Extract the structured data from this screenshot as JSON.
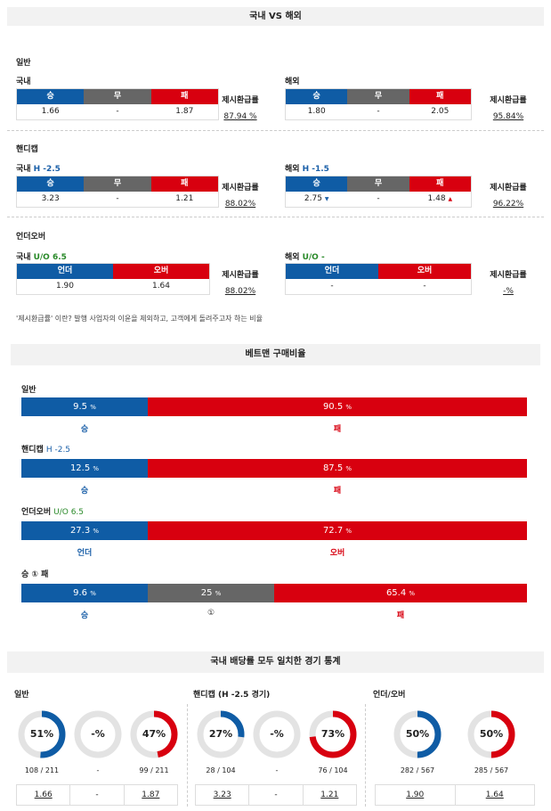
{
  "sec1": {
    "title": "국내 VS 해외",
    "rate_label": "제시환급률",
    "general": {
      "label": "일반",
      "dom": {
        "label": "국내",
        "h": [
          "승",
          "무",
          "패"
        ],
        "v": [
          "1.66",
          "-",
          "1.87"
        ],
        "rate": "87.94 %"
      },
      "ovs": {
        "label": "해외",
        "h": [
          "승",
          "무",
          "패"
        ],
        "v": [
          "1.80",
          "-",
          "2.05"
        ],
        "rate": "95.84%"
      }
    },
    "handicap": {
      "label": "핸디캡",
      "dom": {
        "label": "국내",
        "line": "H -2.5",
        "h": [
          "승",
          "무",
          "패"
        ],
        "v": [
          "3.23",
          "-",
          "1.21"
        ],
        "rate": "88.02%"
      },
      "ovs": {
        "label": "해외",
        "line": "H -1.5",
        "h": [
          "승",
          "무",
          "패"
        ],
        "v": [
          "2.75",
          "-",
          "1.48"
        ],
        "down": "▼",
        "up": "▲",
        "rate": "96.22%"
      }
    },
    "ou": {
      "label": "언더오버",
      "dom": {
        "label": "국내",
        "line": "U/O 6.5",
        "h": [
          "언더",
          "오버"
        ],
        "v": [
          "1.90",
          "1.64"
        ],
        "rate": "88.02%"
      },
      "ovs": {
        "label": "해외",
        "line": "U/O -",
        "h": [
          "언더",
          "오버"
        ],
        "v": [
          "-",
          "-"
        ],
        "rate": "-%"
      }
    },
    "note": "'제시환급률' 이란? 발행 사업자의 이윤을 제외하고, 고객에게 돌려주고자 하는 비율"
  },
  "sec2": {
    "title": "베트맨 구매비율",
    "pct_unit": "%",
    "general": {
      "label": "일반",
      "seg": [
        {
          "v": "9.5",
          "pct": 9.5
        },
        {
          "v": "90.5",
          "pct": 90.5
        }
      ],
      "below": [
        "승",
        "패"
      ]
    },
    "handicap": {
      "label": "핸디캡",
      "line": "H -2.5",
      "seg": [
        {
          "v": "12.5",
          "pct": 12.5
        },
        {
          "v": "87.5",
          "pct": 87.5
        }
      ],
      "below": [
        "승",
        "패"
      ]
    },
    "ou": {
      "label": "언더오버",
      "line": "U/O 6.5",
      "seg": [
        {
          "v": "27.3",
          "pct": 27.3
        },
        {
          "v": "72.7",
          "pct": 72.7
        }
      ],
      "below": [
        "언더",
        "오버"
      ]
    },
    "wdl": {
      "label": "승 ① 패",
      "seg": [
        {
          "v": "9.6",
          "pct": 9.6
        },
        {
          "v": "25",
          "pct": 25
        },
        {
          "v": "65.4",
          "pct": 65.4
        }
      ],
      "below": [
        "승",
        "①",
        "패"
      ]
    }
  },
  "sec3": {
    "title": "국내 배당률 모두 일치한 경기 통계",
    "general": {
      "label": "일반",
      "rings": [
        {
          "t": "51%",
          "f": 0.51,
          "c": "#0f5ca5"
        },
        {
          "t": "-%",
          "f": 0,
          "c": "#888"
        },
        {
          "t": "47%",
          "f": 0.47,
          "c": "#d8000f"
        }
      ],
      "counts": [
        "108 / 211",
        "-",
        "99 / 211"
      ],
      "odds": [
        "1.66",
        "-",
        "1.87"
      ]
    },
    "handicap": {
      "label": "핸디캡 (H -2.5 경기)",
      "rings": [
        {
          "t": "27%",
          "f": 0.27,
          "c": "#0f5ca5"
        },
        {
          "t": "-%",
          "f": 0,
          "c": "#888"
        },
        {
          "t": "73%",
          "f": 0.73,
          "c": "#d8000f"
        }
      ],
      "counts": [
        "28 / 104",
        "-",
        "76 / 104"
      ],
      "odds": [
        "3.23",
        "-",
        "1.21"
      ]
    },
    "ou": {
      "label": "언더/오버",
      "rings": [
        {
          "t": "50%",
          "f": 0.5,
          "c": "#0f5ca5"
        },
        {
          "t": "50%",
          "f": 0.5,
          "c": "#d8000f"
        }
      ],
      "counts": [
        "282 / 567",
        "285 / 567"
      ],
      "odds": [
        "1.90",
        "1.64"
      ]
    }
  }
}
